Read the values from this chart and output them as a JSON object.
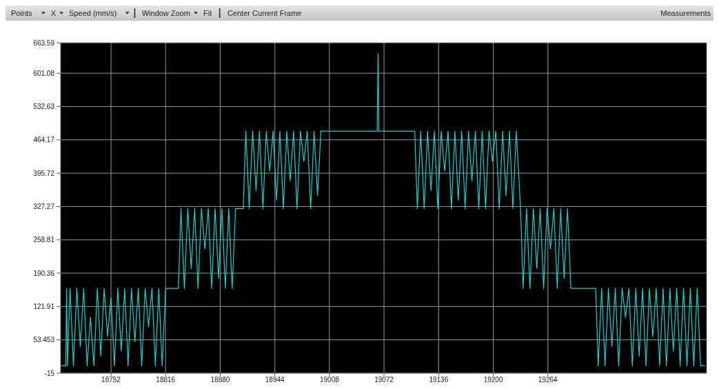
{
  "chart_data": {
    "type": "line",
    "annotations": [
      "Points",
      "X",
      "Speed (mm/s)",
      "Window Zoom",
      "Fit",
      "Center Current Frame",
      "Measurements"
    ],
    "xlim": [
      18693,
      19450
    ],
    "xticks": [
      18752,
      18816,
      18880,
      18944,
      19008,
      19072,
      19136,
      19200,
      19264
    ],
    "ylim": [
      -15,
      663.59
    ],
    "yticks": [
      -15,
      53.453,
      121.91,
      190.36,
      258.81,
      327.27,
      395.72,
      464.17,
      532.63,
      601.08,
      663.59
    ],
    "grid": true,
    "marker": "none",
    "line_style": "solid",
    "series": [
      {
        "color": "#1ed2d2",
        "x": [
          18693,
          18699,
          18700,
          18701,
          18704,
          18708,
          18712,
          18716,
          18720,
          18724,
          18728,
          18732,
          18736,
          18740,
          18744,
          18748,
          18752,
          18756,
          18760,
          18764,
          18768,
          18772,
          18776,
          18780,
          18784,
          18788,
          18792,
          18796,
          18800,
          18804,
          18808,
          18812,
          18816,
          18820,
          18831,
          18834,
          18838,
          18842,
          18846,
          18850,
          18854,
          18858,
          18862,
          18866,
          18870,
          18874,
          18878,
          18882,
          18886,
          18890,
          18894,
          18898,
          18907,
          18910,
          18914,
          18918,
          18922,
          18926,
          18930,
          18934,
          18938,
          18942,
          18946,
          18950,
          18954,
          18958,
          18962,
          18966,
          18970,
          18974,
          18978,
          18982,
          18986,
          18990,
          18994,
          18998,
          19002,
          19064,
          19065,
          19066,
          19108,
          19111,
          19115,
          19119,
          19123,
          19127,
          19131,
          19135,
          19139,
          19143,
          19147,
          19151,
          19155,
          19159,
          19163,
          19167,
          19171,
          19175,
          19179,
          19183,
          19187,
          19191,
          19195,
          19199,
          19203,
          19207,
          19211,
          19215,
          19219,
          19223,
          19227,
          19232,
          19235,
          19239,
          19243,
          19247,
          19251,
          19255,
          19259,
          19263,
          19267,
          19271,
          19275,
          19279,
          19283,
          19287,
          19291,
          19295,
          19320,
          19323,
          19327,
          19331,
          19335,
          19339,
          19343,
          19347,
          19351,
          19355,
          19359,
          19363,
          19367,
          19371,
          19375,
          19379,
          19383,
          19387,
          19391,
          19395,
          19399,
          19403,
          19407,
          19411,
          19415,
          19419,
          19423,
          19427,
          19431,
          19435,
          19439,
          19443,
          19448
        ],
        "values": [
          0,
          0,
          159,
          0,
          159,
          0,
          159,
          40,
          159,
          0,
          100,
          0,
          159,
          20,
          159,
          60,
          140,
          0,
          159,
          30,
          159,
          0,
          159,
          50,
          159,
          0,
          159,
          80,
          159,
          0,
          159,
          0,
          159,
          159,
          159,
          323,
          159,
          323,
          200,
          323,
          159,
          323,
          240,
          323,
          159,
          323,
          180,
          323,
          159,
          323,
          159,
          323,
          323,
          482,
          323,
          482,
          360,
          482,
          323,
          482,
          400,
          482,
          340,
          482,
          323,
          482,
          380,
          482,
          323,
          482,
          420,
          482,
          323,
          482,
          350,
          482,
          482,
          482,
          641,
          482,
          482,
          323,
          482,
          323,
          482,
          360,
          482,
          323,
          482,
          400,
          482,
          323,
          482,
          340,
          482,
          323,
          482,
          380,
          482,
          323,
          482,
          323,
          482,
          420,
          482,
          323,
          482,
          350,
          482,
          323,
          482,
          323,
          159,
          323,
          159,
          323,
          200,
          323,
          159,
          323,
          240,
          323,
          159,
          323,
          180,
          323,
          159,
          159,
          159,
          0,
          159,
          0,
          159,
          40,
          159,
          0,
          159,
          100,
          159,
          0,
          159,
          20,
          159,
          0,
          159,
          60,
          159,
          0,
          159,
          0,
          159,
          30,
          159,
          0,
          159,
          0,
          159,
          0,
          159,
          0,
          0
        ]
      }
    ]
  }
}
